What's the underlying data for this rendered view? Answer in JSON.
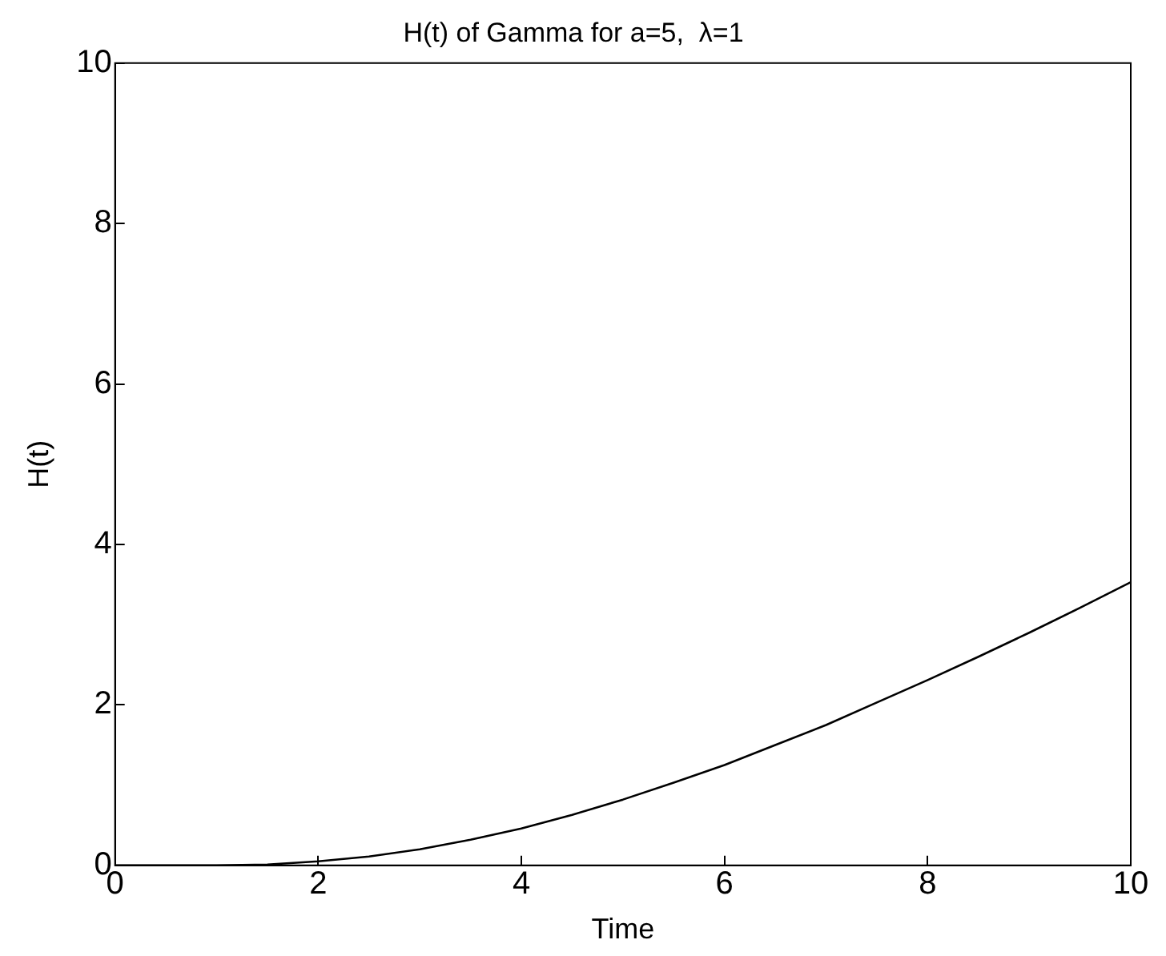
{
  "chart_data": {
    "type": "line",
    "title": "H(t) of Gamma for a=5,  λ=1",
    "xlabel": "Time",
    "ylabel": "H(t)",
    "series": [
      {
        "color": "#000000",
        "x": [
          0,
          1,
          1.5,
          2,
          2.5,
          3,
          3.5,
          4,
          4.5,
          5,
          5.5,
          6,
          6.5,
          7,
          7.5,
          8,
          8.5,
          9,
          9.5,
          10
        ],
        "values": [
          0,
          0,
          0.01,
          0.05,
          0.11,
          0.2,
          0.32,
          0.46,
          0.63,
          0.82,
          1.03,
          1.25,
          1.5,
          1.75,
          2.03,
          2.31,
          2.6,
          2.9,
          3.21,
          3.53
        ]
      }
    ],
    "xlim": [
      0,
      10
    ],
    "xticks": [
      0,
      2,
      4,
      6,
      8,
      10
    ],
    "ylim": [
      0,
      10
    ],
    "yticks": [
      0,
      2,
      4,
      6,
      8,
      10
    ],
    "grid": false,
    "legend": false,
    "marker": "none",
    "line_style": "solid"
  }
}
